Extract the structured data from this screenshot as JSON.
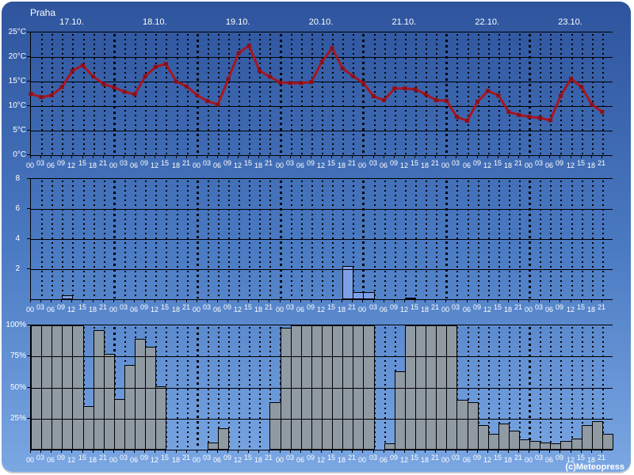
{
  "header": {
    "title": "Praha"
  },
  "footer": {
    "copyright": "(c)Meteopress"
  },
  "colors": {
    "background_top": "#2e549d",
    "background_bottom": "#7ba7e3",
    "temperature_line": "#a8161f",
    "temperature_marker": "#8c0f18",
    "precipitation_bar": "#7d9fe6",
    "cloudiness_bar": "#909aa3",
    "grid": "#000000",
    "text": "#ffffff"
  },
  "x_axis": {
    "days": [
      "17.10.",
      "18.10.",
      "19.10.",
      "20.10.",
      "21.10.",
      "22.10.",
      "23.10."
    ],
    "hours": [
      "00",
      "03",
      "06",
      "09",
      "12",
      "15",
      "18",
      "21"
    ]
  },
  "chart_data": [
    {
      "type": "line",
      "name": "temperature",
      "unit": "°C",
      "ylim": [
        0,
        25
      ],
      "ytick_values": [
        25,
        20,
        15,
        10,
        5,
        0
      ],
      "ytick_labels": [
        "25°C",
        "20°C",
        "15°C",
        "10°C",
        "5°C",
        "0°C"
      ],
      "values": [
        12.5,
        11.8,
        12.2,
        13.9,
        17.2,
        18.3,
        16.0,
        14.5,
        13.8,
        12.9,
        12.4,
        16.1,
        18.0,
        18.6,
        15.0,
        14.0,
        12.2,
        11.0,
        10.3,
        15.5,
        20.8,
        22.3,
        17.2,
        16.0,
        14.8,
        14.7,
        14.7,
        14.9,
        19.0,
        21.8,
        17.7,
        16.1,
        14.7,
        12.0,
        11.2,
        13.6,
        13.6,
        13.4,
        12.4,
        11.2,
        11.1,
        7.8,
        7.0,
        10.9,
        13.1,
        12.2,
        8.8,
        8.2,
        7.8,
        7.6,
        7.1,
        12.1,
        15.6,
        13.9,
        10.3,
        8.8
      ]
    },
    {
      "type": "bar",
      "name": "precipitation",
      "unit": "mm",
      "ylim": [
        0,
        8
      ],
      "ytick_values": [
        8,
        6,
        4,
        2
      ],
      "ytick_labels": [
        "8",
        "6",
        "4",
        "2"
      ],
      "values": [
        0,
        0,
        0,
        0.25,
        0,
        0,
        0,
        0,
        0,
        0,
        0,
        0,
        0,
        0,
        0,
        0,
        0,
        0,
        0,
        0,
        0,
        0,
        0,
        0,
        0,
        0,
        0,
        0,
        0,
        0,
        2.2,
        0.45,
        0.45,
        0,
        0,
        0,
        0.1,
        0,
        0,
        0,
        0,
        0,
        0,
        0,
        0,
        0,
        0,
        0,
        0,
        0,
        0,
        0,
        0,
        0,
        0,
        0
      ]
    },
    {
      "type": "bar",
      "name": "cloudiness",
      "unit": "%",
      "ylim": [
        0,
        100
      ],
      "ytick_values": [
        100,
        75,
        50,
        25
      ],
      "ytick_labels": [
        "100%",
        "75%",
        "50%",
        "25%"
      ],
      "values": [
        100,
        100,
        100,
        100,
        100,
        35,
        96,
        77,
        41,
        68,
        89,
        83,
        51,
        0,
        0,
        0,
        0,
        6,
        17,
        0,
        0,
        0,
        0,
        38,
        98,
        100,
        100,
        100,
        100,
        100,
        100,
        100,
        100,
        0,
        5,
        63,
        100,
        100,
        100,
        100,
        100,
        40,
        38,
        20,
        13,
        21,
        15,
        8,
        7,
        6,
        5,
        7,
        9,
        20,
        23,
        13
      ]
    }
  ]
}
